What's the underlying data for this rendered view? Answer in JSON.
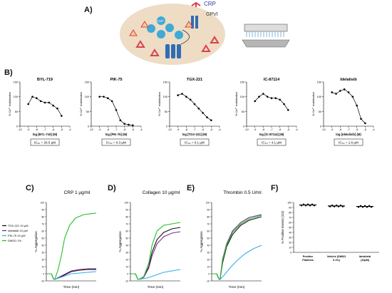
{
  "panel_labels": {
    "a": "A)",
    "b": "B)",
    "c": "C)",
    "d": "D)",
    "e": "E)",
    "f": "F)"
  },
  "schematic": {
    "crp_label": "CRP",
    "gpvi_label": "GPVI",
    "ca_label": "Ca²⁺"
  },
  "colors": {
    "cell_fill": "#eedcc5",
    "crp": "#d9414e",
    "ca": "#3fa9d8",
    "receptor": "#2f6db5",
    "green": "#22c02a",
    "purple": "#7a2e8c",
    "black": "#111111",
    "lightblue": "#35aee6"
  },
  "chart_data": [
    {
      "type": "scatter",
      "title": "BYL-719",
      "xlabel": "log [BYL-719] (M)",
      "ylabel": "% Ca²⁺ mobilisation",
      "xlim": [
        -10,
        -4
      ],
      "ylim": [
        0,
        150
      ],
      "xticks": [
        "-10",
        "-9",
        "-8",
        "-7",
        "-6",
        "-5",
        "-4"
      ],
      "yticks": [
        "0",
        "50",
        "100",
        "150"
      ],
      "x": [
        -9,
        -8.5,
        -8,
        -7.5,
        -7,
        -6.5,
        -6,
        -5.5,
        -5
      ],
      "y": [
        75,
        100,
        95,
        85,
        80,
        80,
        70,
        60,
        35
      ],
      "ic50_label": "IC₅₀ = 26.5 µM"
    },
    {
      "type": "scatter",
      "title": "PIK-75",
      "xlabel": "log [PIK-75] (M)",
      "ylabel": "% Ca²⁺ mobilisation",
      "xlim": [
        -10,
        -4
      ],
      "ylim": [
        0,
        150
      ],
      "xticks": [
        "-10",
        "-9",
        "-8",
        "-7",
        "-6",
        "-5",
        "-4"
      ],
      "yticks": [
        "0",
        "50",
        "100",
        "150"
      ],
      "x": [
        -9,
        -8.5,
        -8,
        -7.5,
        -7,
        -6.5,
        -6,
        -5.5,
        -5
      ],
      "y": [
        100,
        100,
        95,
        85,
        55,
        20,
        8,
        5,
        3
      ],
      "ic50_label": "IC₅₀ = 0.3 µM"
    },
    {
      "type": "scatter",
      "title": "TGX-221",
      "xlabel": "log [TGX-221] (M)",
      "ylabel": "% Ca²⁺ mobilisation",
      "xlim": [
        -10,
        -4
      ],
      "ylim": [
        0,
        150
      ],
      "xticks": [
        "-10",
        "-9",
        "-8",
        "-7",
        "-6",
        "-5",
        "-4"
      ],
      "yticks": [
        "0",
        "50",
        "100",
        "150"
      ],
      "x": [
        -9,
        -8.5,
        -8,
        -7.5,
        -7,
        -6.5,
        -6,
        -5.5,
        -5
      ],
      "y": [
        105,
        110,
        100,
        90,
        75,
        60,
        45,
        30,
        20
      ],
      "ic50_label": "IC₅₀ = 0.1 µM"
    },
    {
      "type": "scatter",
      "title": "IC-87114",
      "xlabel": "log [IC-87114] (M)",
      "ylabel": "% Ca²⁺ mobilisation",
      "xlim": [
        -10,
        -4
      ],
      "ylim": [
        0,
        150
      ],
      "xticks": [
        "-10",
        "-9",
        "-8",
        "-7",
        "-6",
        "-5",
        "-4"
      ],
      "yticks": [
        "0",
        "50",
        "100",
        "150"
      ],
      "x": [
        -9,
        -8.5,
        -8,
        -7.5,
        -7,
        -6.5,
        -6,
        -5.5,
        -5
      ],
      "y": [
        85,
        100,
        110,
        100,
        95,
        95,
        90,
        75,
        55
      ],
      "ic50_label": "IC₅₀ = 4.1 µM"
    },
    {
      "type": "scatter",
      "title": "Idelalisib",
      "xlabel": "log [Idelalisib] (M)",
      "ylabel": "% Ca²⁺ mobilisation",
      "xlim": [
        -10,
        -4
      ],
      "ylim": [
        0,
        150
      ],
      "xticks": [
        "-10",
        "-9",
        "-8",
        "-7",
        "-6",
        "-5",
        "-4"
      ],
      "yticks": [
        "0",
        "50",
        "100",
        "150"
      ],
      "x": [
        -9,
        -8.5,
        -8,
        -7.5,
        -7,
        -6.5,
        -6,
        -5.5,
        -5
      ],
      "y": [
        115,
        110,
        120,
        125,
        115,
        100,
        70,
        25,
        10
      ],
      "ic50_label": "IC₅₀ = 1.6 µM"
    },
    {
      "type": "line",
      "title": "CRP 1 µg/ml",
      "xlabel": "Time (min)",
      "ylabel": "% Aggregation",
      "ylim": [
        -10,
        100
      ],
      "xlim": [
        0,
        6
      ],
      "yticks": [
        "100",
        "90",
        "80",
        "70",
        "60",
        "50",
        "40",
        "30",
        "20",
        "10",
        "0",
        "-10"
      ],
      "legend": [
        "TGX-221 10 µM",
        "Idelalisib 10 µM",
        "PIK-75 10 µM",
        "DMSO 1%"
      ],
      "series": [
        {
          "name": "TGX-221 10 µM",
          "color": "#111111",
          "x": [
            0,
            0.6,
            0.9,
            1.0,
            2.0,
            3.0,
            4.0,
            5.0,
            6.0
          ],
          "y": [
            0,
            0,
            -8,
            -8,
            -3,
            3,
            5,
            6,
            6
          ]
        },
        {
          "name": "Idelalisib 10 µM",
          "color": "#7a2e8c",
          "x": [
            0,
            0.6,
            0.9,
            1.0,
            2.0,
            3.0,
            4.0,
            5.0,
            6.0
          ],
          "y": [
            0,
            0,
            -8,
            -8,
            -2,
            4,
            6,
            7,
            7
          ]
        },
        {
          "name": "PIK-75 10 µM",
          "color": "#35aee6",
          "x": [
            0,
            0.6,
            0.9,
            1.0,
            2.0,
            3.0,
            4.0,
            5.0,
            6.0
          ],
          "y": [
            0,
            0,
            -8,
            -8,
            -4,
            0,
            1,
            2,
            3
          ]
        },
        {
          "name": "DMSO 1%",
          "color": "#22c02a",
          "x": [
            0,
            0.6,
            0.9,
            1.0,
            1.4,
            1.8,
            2.2,
            2.8,
            3.5,
            4.5,
            6.0
          ],
          "y": [
            0,
            0,
            -8,
            -8,
            5,
            25,
            50,
            68,
            78,
            83,
            85
          ]
        }
      ]
    },
    {
      "type": "line",
      "title": "Collagen 10 µg/ml",
      "xlabel": "Time (min)",
      "ylabel": "% Aggregation",
      "ylim": [
        -10,
        100
      ],
      "xlim": [
        0,
        6
      ],
      "yticks": [
        "100",
        "90",
        "80",
        "70",
        "60",
        "50",
        "40",
        "30",
        "20",
        "10",
        "0",
        "-10"
      ],
      "series": [
        {
          "color": "#111111",
          "x": [
            0,
            0.6,
            0.9,
            1.0,
            1.6,
            2.2,
            2.6,
            3.2,
            4.0,
            5.0,
            6.0
          ],
          "y": [
            0,
            0,
            -8,
            -8,
            -5,
            10,
            30,
            48,
            58,
            63,
            65
          ]
        },
        {
          "color": "#7a2e8c",
          "x": [
            0,
            0.6,
            0.9,
            1.0,
            1.6,
            2.2,
            2.6,
            3.2,
            4.0,
            5.0,
            6.0
          ],
          "y": [
            0,
            0,
            -8,
            -8,
            -5,
            8,
            25,
            42,
            52,
            57,
            59
          ]
        },
        {
          "color": "#35aee6",
          "x": [
            0,
            0.6,
            0.9,
            1.0,
            2.0,
            3.0,
            4.0,
            5.0,
            6.0
          ],
          "y": [
            0,
            0,
            -8,
            -8,
            -6,
            -2,
            2,
            4,
            6
          ]
        },
        {
          "color": "#22c02a",
          "x": [
            0,
            0.6,
            0.9,
            1.0,
            1.6,
            2.2,
            2.6,
            3.2,
            4.0,
            5.0,
            6.0
          ],
          "y": [
            0,
            0,
            -8,
            -8,
            -4,
            15,
            40,
            60,
            68,
            70,
            72
          ]
        }
      ]
    },
    {
      "type": "line",
      "title": "Thrombin 0.5 U/ml",
      "xlabel": "Time (min)",
      "ylabel": "% Aggregation",
      "ylim": [
        -10,
        100
      ],
      "xlim": [
        0,
        6
      ],
      "yticks": [
        "100",
        "90",
        "80",
        "70",
        "60",
        "50",
        "40",
        "30",
        "20",
        "10",
        "0",
        "-10"
      ],
      "series": [
        {
          "color": "#35aee6",
          "x": [
            0,
            0.6,
            0.9,
            1.0,
            1.5,
            2.2,
            3.0,
            4.0,
            5.0,
            6.0
          ],
          "y": [
            0,
            0,
            -8,
            -8,
            -2,
            8,
            18,
            28,
            35,
            40
          ]
        },
        {
          "color": "#111111",
          "x": [
            0,
            0.6,
            0.9,
            1.0,
            1.3,
            1.8,
            2.5,
            3.5,
            4.5,
            6.0
          ],
          "y": [
            0,
            0,
            -8,
            -8,
            15,
            38,
            55,
            68,
            75,
            80
          ]
        },
        {
          "color": "#7a2e8c",
          "x": [
            0,
            0.6,
            0.9,
            1.0,
            1.3,
            1.8,
            2.5,
            3.5,
            4.5,
            6.0
          ],
          "y": [
            0,
            0,
            -8,
            -8,
            20,
            42,
            60,
            72,
            79,
            83
          ]
        },
        {
          "color": "#22c02a",
          "x": [
            0,
            0.6,
            0.9,
            1.0,
            1.3,
            1.8,
            2.5,
            3.5,
            4.5,
            6.0
          ],
          "y": [
            0,
            0,
            -8,
            -8,
            18,
            40,
            58,
            70,
            77,
            82
          ]
        }
      ]
    },
    {
      "type": "scatter",
      "title": "",
      "xlabel": "",
      "ylabel": "% Positive Events (G3)",
      "ylim": [
        0,
        100
      ],
      "yticks": [
        "0",
        "10",
        "20",
        "30",
        "40",
        "50",
        "60",
        "70",
        "80",
        "90",
        "100"
      ],
      "categories": [
        "Positive Platelets",
        "Vehicle (DMSO 0.1%)",
        "Idelalisib (10µM)"
      ],
      "values": [
        95,
        93,
        92
      ]
    }
  ]
}
